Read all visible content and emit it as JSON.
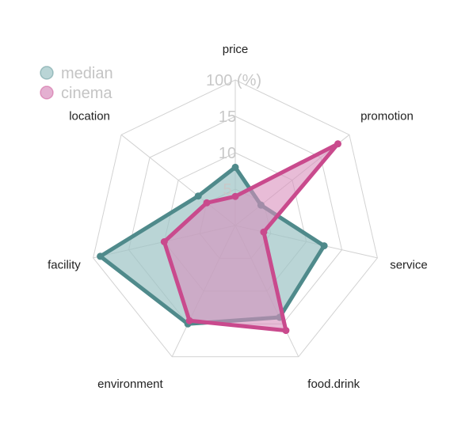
{
  "chart_data": {
    "type": "radar",
    "axes": [
      "price",
      "promotion",
      "service",
      "food.drink",
      "environment",
      "facility",
      "location"
    ],
    "ticks": [
      "5",
      "10",
      "15",
      "100 (%)"
    ],
    "tick_values": [
      5,
      10,
      15,
      20
    ],
    "range": [
      0,
      20
    ],
    "grid": true,
    "legend_position": "top-left",
    "series": [
      {
        "name": "median",
        "color": "#4f8a8b",
        "fill": "#9cc3c4",
        "values": [
          8.0,
          4.5,
          12.5,
          14.0,
          15.0,
          19.0,
          6.5
        ]
      },
      {
        "name": "cinema",
        "color": "#c94a8d",
        "fill": "#d98fbd",
        "values": [
          4.0,
          18.0,
          4.0,
          16.0,
          14.5,
          10.0,
          5.0
        ]
      }
    ]
  }
}
